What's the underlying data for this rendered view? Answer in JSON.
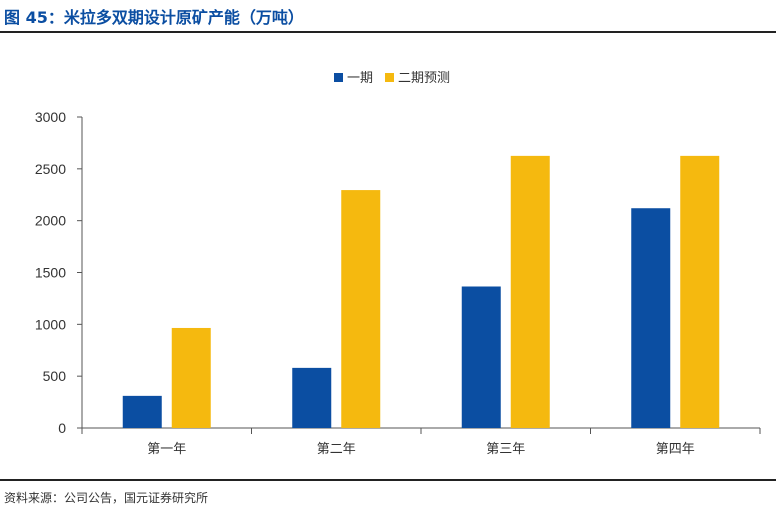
{
  "figure": {
    "title": "图 45：米拉多双期设计原矿产能（万吨）",
    "source": "资料来源：公司公告，国元证券研究所"
  },
  "colors": {
    "title": "#0b4ea2",
    "series_1": "#0b4ea2",
    "series_2": "#f5b90f",
    "axis": "#555555",
    "rule": "#222222"
  },
  "chart_data": {
    "type": "bar",
    "categories": [
      "第一年",
      "第二年",
      "第三年",
      "第四年"
    ],
    "series": [
      {
        "name": "一期",
        "values": [
          310,
          580,
          1365,
          2120
        ],
        "color": "#0b4ea2"
      },
      {
        "name": "二期预测",
        "values": [
          965,
          2295,
          2625,
          2625
        ],
        "color": "#f5b90f"
      }
    ],
    "ylim": [
      0,
      3000
    ],
    "yticks": [
      0,
      500,
      1000,
      1500,
      2000,
      2500,
      3000
    ],
    "grid": false,
    "legend_position": "top-center"
  }
}
